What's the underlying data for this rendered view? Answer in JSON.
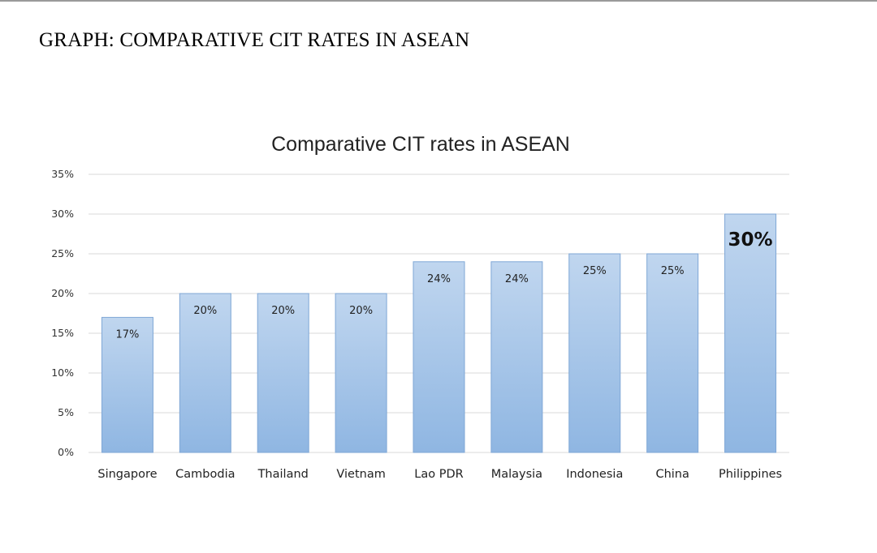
{
  "page": {
    "heading": "GRAPH: COMPARATIVE CIT RATES IN ASEAN"
  },
  "colors": {
    "bar_top": "#c0d6ef",
    "bar_bottom": "#8fb6e2",
    "bar_border": "#7fa7d6",
    "gridline": "#d9d9d9"
  },
  "chart_data": {
    "type": "bar",
    "title": "Comparative CIT rates in ASEAN",
    "xlabel": "",
    "ylabel": "",
    "categories": [
      "Singapore",
      "Cambodia",
      "Thailand",
      "Vietnam",
      "Lao PDR",
      "Malaysia",
      "Indonesia",
      "China",
      "Philippines"
    ],
    "values": [
      17,
      20,
      20,
      20,
      24,
      24,
      25,
      25,
      30
    ],
    "data_labels": [
      "17%",
      "20%",
      "20%",
      "20%",
      "24%",
      "24%",
      "25%",
      "25%",
      "30%"
    ],
    "emphasized_label": "30%",
    "ylim": [
      0,
      35
    ],
    "y_ticks": [
      0,
      5,
      10,
      15,
      20,
      25,
      30,
      35
    ],
    "y_tick_labels": [
      "0%",
      "5%",
      "10%",
      "15%",
      "20%",
      "25%",
      "30%",
      "35%"
    ],
    "grid": true,
    "legend": "none"
  }
}
